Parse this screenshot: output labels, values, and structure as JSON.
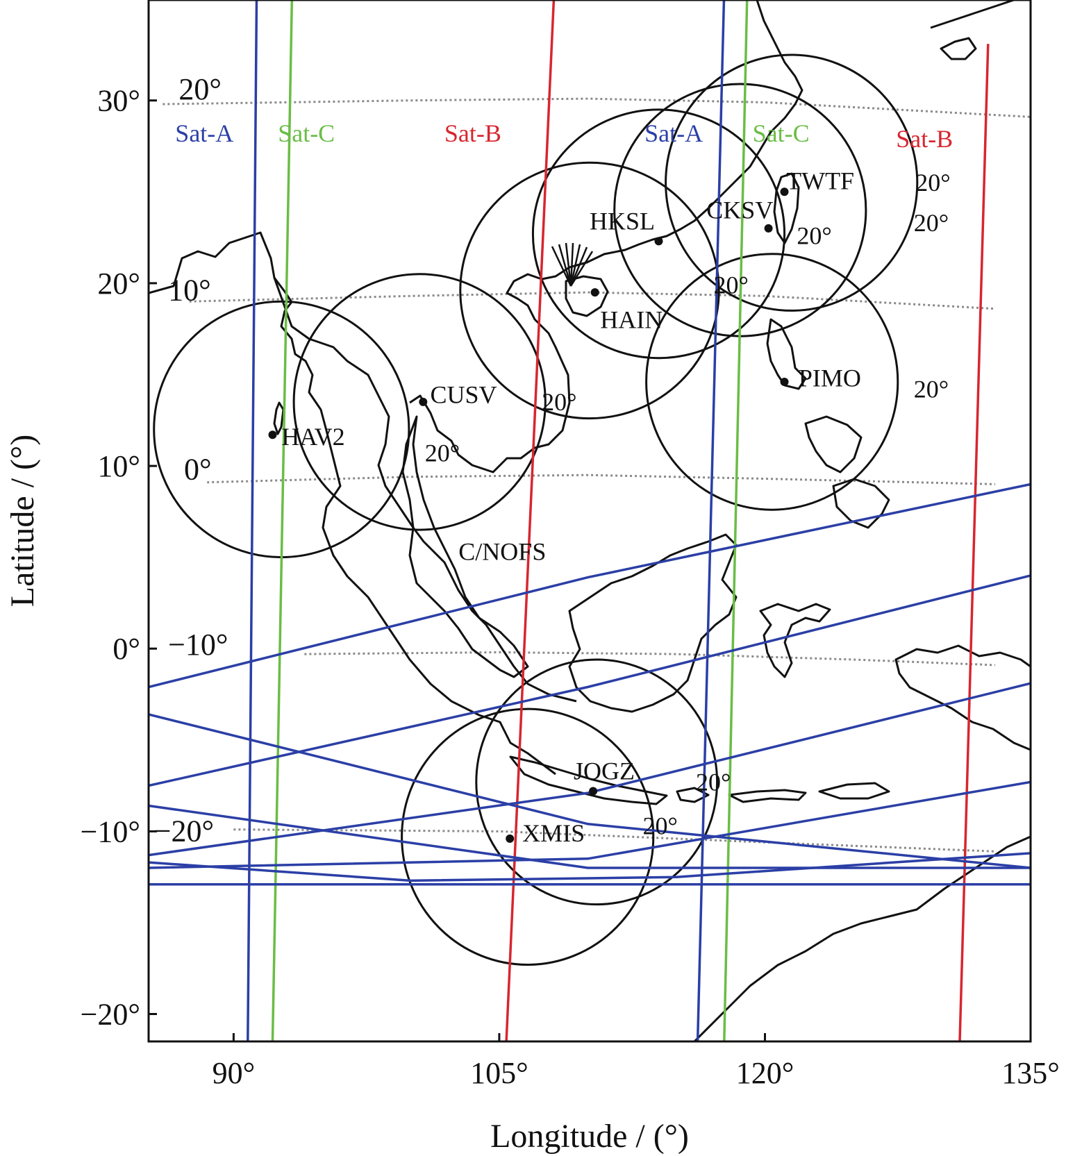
{
  "figure": {
    "x_axis": {
      "title": "Longitude / (°)",
      "ticks": [
        {
          "value": 90,
          "label": "90°"
        },
        {
          "value": 105,
          "label": "105°"
        },
        {
          "value": 120,
          "label": "120°"
        },
        {
          "value": 135,
          "label": "135°"
        }
      ],
      "range": [
        85.2,
        135
      ]
    },
    "y_axis": {
      "title": "Latitude / (°)",
      "ticks": [
        {
          "value": 30,
          "label": "30°"
        },
        {
          "value": 20,
          "label": "20°"
        },
        {
          "value": 10,
          "label": "10°"
        },
        {
          "value": 0,
          "label": "0°"
        },
        {
          "value": -10,
          "label": "−10°"
        },
        {
          "value": -20,
          "label": "−20°"
        }
      ],
      "range": [
        -21.5,
        35.5
      ]
    },
    "magnetic_latitude_labels": [
      {
        "text": "20°",
        "lon": 86.9,
        "lat": 30.6
      },
      {
        "text": "10°",
        "lon": 86.3,
        "lat": 19.6
      },
      {
        "text": "0°",
        "lon": 87.2,
        "lat": 9.8
      },
      {
        "text": "−10°",
        "lon": 86.3,
        "lat": 0.2
      },
      {
        "text": "−20°",
        "lon": 85.5,
        "lat": -10.0
      }
    ],
    "satellite_labels": [
      {
        "text": "Sat-A",
        "lon": 86.7,
        "lat": 28.2,
        "color": "#2b3fa6"
      },
      {
        "text": "Sat-C",
        "lon": 92.5,
        "lat": 28.2,
        "color": "#6abd45"
      },
      {
        "text": "Sat-B",
        "lon": 101.9,
        "lat": 28.2,
        "color": "#d7262f"
      },
      {
        "text": "Sat-A",
        "lon": 113.2,
        "lat": 28.2,
        "color": "#2b3fa6"
      },
      {
        "text": "Sat-C",
        "lon": 119.3,
        "lat": 28.2,
        "color": "#6abd45"
      },
      {
        "text": "Sat-B",
        "lon": 127.4,
        "lat": 27.9,
        "color": "#d7262f"
      }
    ],
    "orbit_label": {
      "text": "C/NOFS",
      "lon": 102.7,
      "lat": 5.3,
      "color": "#111111"
    },
    "stations": [
      {
        "name": "HAV2",
        "lon": 92.2,
        "lat": 11.7,
        "label_dx": 0.5,
        "label_dy": -0.1
      },
      {
        "name": "CUSV",
        "lon": 100.7,
        "lat": 13.5,
        "label_dx": 0.4,
        "label_dy": 0.4
      },
      {
        "name": "HAIN",
        "lon": 110.4,
        "lat": 19.5,
        "label_dx": 0.3,
        "label_dy": -1.5
      },
      {
        "name": "HKSL",
        "lon": 114.0,
        "lat": 22.3,
        "label_dx": -3.9,
        "label_dy": 1.1
      },
      {
        "name": "CKSV",
        "lon": 120.2,
        "lat": 23.0,
        "label_dx": -3.5,
        "label_dy": 1.0
      },
      {
        "name": "TWTF",
        "lon": 121.1,
        "lat": 25.0,
        "label_dx": 0.1,
        "label_dy": 0.6
      },
      {
        "name": "PIMO",
        "lon": 121.1,
        "lat": 14.6,
        "label_dx": 0.8,
        "label_dy": 0.2
      },
      {
        "name": "JOGZ",
        "lon": 110.3,
        "lat": -7.8,
        "label_dx": -1.1,
        "label_dy": 1.1
      },
      {
        "name": "XMIS",
        "lon": 105.6,
        "lat": -10.4,
        "label_dx": 0.7,
        "label_dy": 0.3
      }
    ],
    "coverage_circles": [
      {
        "station": "HAV2",
        "clon": 92.7,
        "clat": 12.0,
        "rx": 7.2,
        "ry": 7.0
      },
      {
        "station": "CUSV",
        "clon": 100.5,
        "clat": 13.5,
        "rx": 7.1,
        "ry": 7.0
      },
      {
        "station": "HAIN",
        "clon": 110.1,
        "clat": 19.6,
        "rx": 7.3,
        "ry": 7.0
      },
      {
        "station": "HKSL",
        "clon": 114.0,
        "clat": 22.7,
        "rx": 7.1,
        "ry": 6.8
      },
      {
        "station": "CKSV",
        "clon": 118.6,
        "clat": 24.0,
        "rx": 7.1,
        "ry": 6.9
      },
      {
        "station": "TWTF",
        "clon": 121.5,
        "clat": 25.5,
        "rx": 7.1,
        "ry": 7.0
      },
      {
        "station": "PIMO",
        "clon": 120.4,
        "clat": 14.6,
        "rx": 7.1,
        "ry": 7.0
      },
      {
        "station": "JOGZ",
        "clon": 110.5,
        "clat": -7.3,
        "rx": 6.8,
        "ry": 6.7
      },
      {
        "station": "XMIS",
        "clon": 106.6,
        "clat": -10.3,
        "rx": 7.1,
        "ry": 7.0
      }
    ],
    "elevation_labels": [
      {
        "text": "20°",
        "lon": 107.4,
        "lat": 13.5
      },
      {
        "text": "20°",
        "lon": 100.8,
        "lat": 10.7
      },
      {
        "text": "20°",
        "lon": 117.1,
        "lat": 19.9
      },
      {
        "text": "20°",
        "lon": 121.8,
        "lat": 22.6
      },
      {
        "text": "20°",
        "lon": 128.4,
        "lat": 23.3
      },
      {
        "text": "20°",
        "lon": 128.5,
        "lat": 25.5
      },
      {
        "text": "20°",
        "lon": 128.4,
        "lat": 14.2
      },
      {
        "text": "20°",
        "lon": 116.1,
        "lat": -7.3
      },
      {
        "text": "20°",
        "lon": 113.1,
        "lat": -9.7
      }
    ],
    "satellite_tracks": [
      {
        "name": "Sat-A",
        "color": "#2b3fa6",
        "points": [
          [
            91.3,
            36.0
          ],
          [
            90.8,
            -21.5
          ]
        ]
      },
      {
        "name": "Sat-C",
        "color": "#6abd45",
        "points": [
          [
            93.3,
            36.0
          ],
          [
            92.2,
            -21.5
          ]
        ]
      },
      {
        "name": "Sat-B",
        "color": "#d7262f",
        "points": [
          [
            108.1,
            36.0
          ],
          [
            105.4,
            -21.5
          ]
        ]
      },
      {
        "name": "Sat-A",
        "color": "#2b3fa6",
        "points": [
          [
            117.7,
            36.0
          ],
          [
            116.2,
            -21.5
          ]
        ]
      },
      {
        "name": "Sat-C",
        "color": "#6abd45",
        "points": [
          [
            119.0,
            36.0
          ],
          [
            117.7,
            -21.5
          ]
        ]
      },
      {
        "name": "Sat-B",
        "color": "#d7262f",
        "points": [
          [
            132.6,
            33.1
          ],
          [
            131.0,
            -21.5
          ]
        ]
      }
    ],
    "cnofs_tracks": [
      {
        "color": "#2b3fa6",
        "points": [
          [
            85.2,
            -2.1
          ],
          [
            110.0,
            3.9
          ],
          [
            135.0,
            9.0
          ]
        ]
      },
      {
        "color": "#2b3fa6",
        "points": [
          [
            85.2,
            -7.5
          ],
          [
            110.0,
            -2.1
          ],
          [
            135.0,
            4.0
          ]
        ]
      },
      {
        "color": "#2b3fa6",
        "points": [
          [
            85.2,
            -11.3
          ],
          [
            110.0,
            -7.9
          ],
          [
            135.0,
            -1.9
          ]
        ]
      },
      {
        "color": "#2b3fa6",
        "points": [
          [
            85.2,
            -12.0
          ],
          [
            110.0,
            -11.5
          ],
          [
            135.0,
            -7.3
          ]
        ]
      },
      {
        "color": "#2b3fa6",
        "points": [
          [
            85.2,
            -3.6
          ],
          [
            110.0,
            -9.6
          ],
          [
            135.0,
            -12.0
          ]
        ]
      },
      {
        "color": "#2b3fa6",
        "points": [
          [
            85.2,
            -8.6
          ],
          [
            110.0,
            -12.0
          ],
          [
            135.0,
            -12.0
          ]
        ]
      },
      {
        "color": "#2b3fa6",
        "points": [
          [
            85.2,
            -11.7
          ],
          [
            100.0,
            -12.7
          ],
          [
            115.0,
            -12.5
          ],
          [
            135.0,
            -11.2
          ]
        ]
      },
      {
        "color": "#2b3fa6",
        "points": [
          [
            85.2,
            -12.9
          ],
          [
            135.0,
            -12.9
          ]
        ]
      }
    ],
    "magnetic_latitude_lines": [
      {
        "label": "20°",
        "points": [
          [
            86.0,
            29.8
          ],
          [
            100.0,
            30.0
          ],
          [
            110.0,
            30.1
          ],
          [
            120.0,
            29.9
          ],
          [
            135.0,
            29.1
          ]
        ]
      },
      {
        "label": "10°",
        "points": [
          [
            87.5,
            19.0
          ],
          [
            100.0,
            19.3
          ],
          [
            110.0,
            19.5
          ],
          [
            120.0,
            19.3
          ],
          [
            133.0,
            18.6
          ]
        ]
      },
      {
        "label": "0°",
        "points": [
          [
            88.5,
            9.1
          ],
          [
            100.0,
            9.4
          ],
          [
            110.0,
            9.5
          ],
          [
            120.0,
            9.3
          ],
          [
            133.0,
            9.0
          ]
        ]
      },
      {
        "label": "−10°",
        "points": [
          [
            94.0,
            -0.3
          ],
          [
            105.0,
            -0.2
          ],
          [
            115.0,
            -0.3
          ],
          [
            125.0,
            -0.6
          ],
          [
            133.0,
            -0.9
          ]
        ]
      },
      {
        "label": "−20°",
        "points": [
          [
            90.0,
            -9.9
          ],
          [
            105.0,
            -10.0
          ],
          [
            120.0,
            -10.6
          ],
          [
            133.0,
            -11.1
          ]
        ]
      }
    ]
  }
}
